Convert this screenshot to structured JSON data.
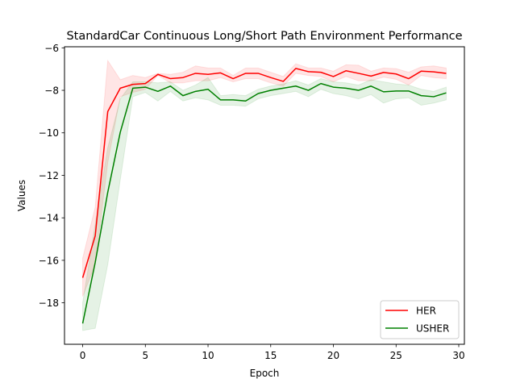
{
  "chart_data": {
    "type": "line",
    "title": "StandardCar Continuous Long/Short Path Environment Performance",
    "xlabel": "Epoch",
    "ylabel": "Values",
    "xlim": [
      -1.45,
      30.45
    ],
    "ylim": [
      -19.95,
      -5.95
    ],
    "xticks": [
      0,
      5,
      10,
      15,
      20,
      25,
      30
    ],
    "yticks": [
      -18,
      -16,
      -14,
      -12,
      -10,
      -8,
      -6
    ],
    "legend_position": "lower-right",
    "grid": false,
    "x": [
      0,
      1,
      2,
      3,
      4,
      5,
      6,
      7,
      8,
      9,
      10,
      11,
      12,
      13,
      14,
      15,
      16,
      17,
      18,
      19,
      20,
      21,
      22,
      23,
      24,
      25,
      26,
      27,
      28,
      29
    ],
    "series": [
      {
        "name": "HER",
        "color": "#ff0000",
        "band_opacity": 0.1,
        "values": [
          -16.82,
          -14.85,
          -9.0,
          -7.9,
          -7.72,
          -7.68,
          -7.25,
          -7.45,
          -7.4,
          -7.2,
          -7.25,
          -7.18,
          -7.45,
          -7.2,
          -7.2,
          -7.4,
          -7.58,
          -6.97,
          -7.12,
          -7.15,
          -7.35,
          -7.08,
          -7.2,
          -7.33,
          -7.16,
          -7.23,
          -7.45,
          -7.1,
          -7.13,
          -7.2
        ],
        "upper": [
          -15.9,
          -13.5,
          -6.6,
          -7.5,
          -7.3,
          -7.4,
          -7.2,
          -7.25,
          -7.15,
          -6.85,
          -6.95,
          -6.95,
          -7.3,
          -6.95,
          -6.95,
          -7.15,
          -7.35,
          -6.75,
          -6.95,
          -6.95,
          -7.1,
          -6.8,
          -6.82,
          -7.1,
          -6.95,
          -6.98,
          -7.15,
          -6.9,
          -6.85,
          -6.95
        ],
        "lower": [
          -17.7,
          -16.2,
          -11.4,
          -8.3,
          -8.1,
          -7.95,
          -7.3,
          -7.65,
          -7.65,
          -7.55,
          -7.55,
          -7.4,
          -7.6,
          -7.45,
          -7.45,
          -7.65,
          -7.8,
          -7.2,
          -7.3,
          -7.35,
          -7.6,
          -7.35,
          -7.55,
          -7.55,
          -7.38,
          -7.48,
          -7.75,
          -7.3,
          -7.4,
          -7.45
        ]
      },
      {
        "name": "USHER",
        "color": "#008000",
        "band_opacity": 0.1,
        "values": [
          -18.97,
          -16.1,
          -12.8,
          -9.97,
          -7.9,
          -7.85,
          -8.05,
          -7.8,
          -8.25,
          -8.05,
          -7.95,
          -8.45,
          -8.45,
          -8.5,
          -8.15,
          -8.0,
          -7.9,
          -7.8,
          -8.0,
          -7.68,
          -7.85,
          -7.9,
          -8.0,
          -7.8,
          -8.07,
          -8.03,
          -8.03,
          -8.25,
          -8.3,
          -8.12
        ],
        "upper": [
          -18.0,
          -14.3,
          -10.7,
          -8.4,
          -7.6,
          -7.6,
          -7.65,
          -7.6,
          -8.0,
          -7.75,
          -7.4,
          -8.25,
          -8.2,
          -8.25,
          -7.95,
          -7.8,
          -7.7,
          -7.55,
          -7.75,
          -7.45,
          -7.6,
          -7.65,
          -7.75,
          -7.5,
          -7.6,
          -7.7,
          -7.75,
          -7.95,
          -8.05,
          -7.85
        ],
        "lower": [
          -19.3,
          -19.2,
          -16.2,
          -12.2,
          -8.3,
          -8.1,
          -8.5,
          -8.05,
          -8.5,
          -8.35,
          -8.45,
          -8.7,
          -8.7,
          -8.75,
          -8.4,
          -8.25,
          -8.15,
          -8.05,
          -8.3,
          -7.95,
          -8.15,
          -8.25,
          -8.4,
          -8.2,
          -8.6,
          -8.4,
          -8.35,
          -8.7,
          -8.6,
          -8.45
        ]
      }
    ]
  }
}
